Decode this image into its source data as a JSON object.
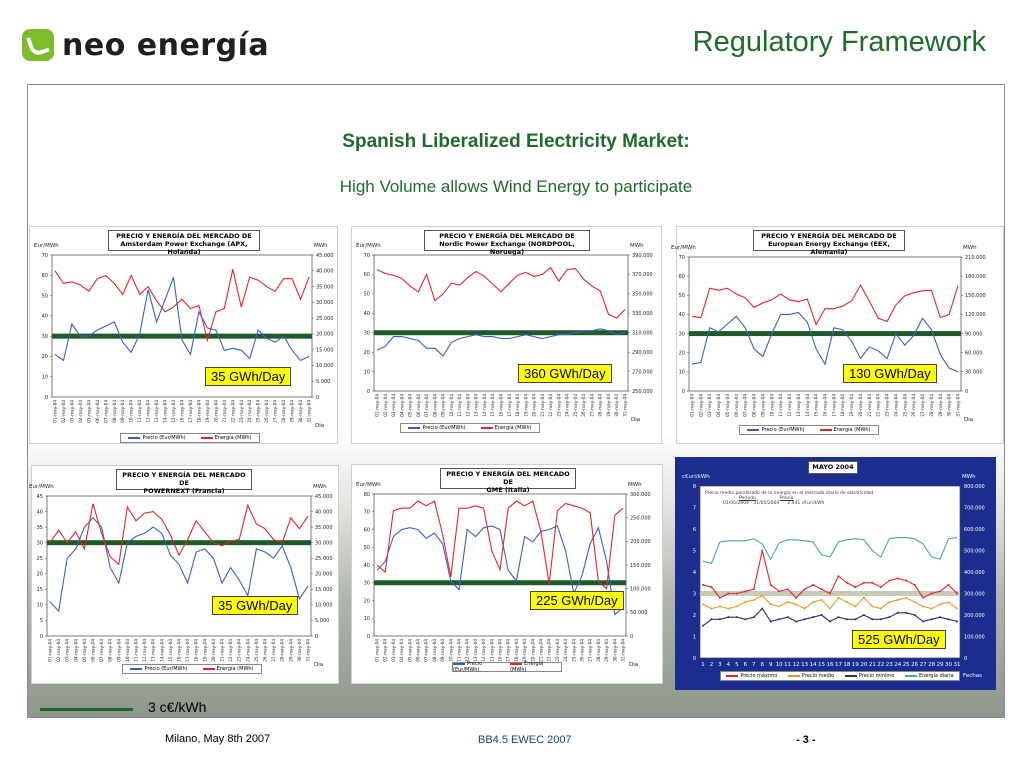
{
  "logo": {
    "text": "neo energía"
  },
  "title": "Regulatory Framework",
  "headline": "Spanish Liberalized Electricity Market:",
  "subheadline": "High Volume allows Wind Energy to participate",
  "colors": {
    "title_green": "#1f6b2b",
    "threshold": "#1f5a2a",
    "price": "#3c5fc4",
    "energy": "#e0262b",
    "callout": "#ffff00"
  },
  "key": {
    "label": "3 c€/kWh"
  },
  "footer": {
    "left": "Milano, May 8th 2007",
    "center": "BB4.5 EWEC 2007",
    "right": "- 3 -"
  },
  "chart_data": [
    {
      "type": "line",
      "title_line1": "PRECIO Y ENERGÍA DEL MERCADO DE",
      "title_line2": "Amsterdam Power Exchange (APX, Holanda)",
      "ylabel_left": "Eur/MWh",
      "ylabel_right": "MWh",
      "xlabel": "Dia",
      "ylim_left": [
        0,
        70
      ],
      "yticks_left": [
        "0",
        "10",
        "20",
        "30",
        "40",
        "50",
        "60",
        "70"
      ],
      "ylim_right": [
        0,
        45000
      ],
      "yticks_right": [
        "0",
        "5.000",
        "10.000",
        "15.000",
        "20.000",
        "25.000",
        "30.000",
        "35.000",
        "40.000",
        "45.000"
      ],
      "x_start": "01-may-04",
      "x_end": "31-may-04",
      "threshold": 30,
      "callout": "35 GWh/Day",
      "series": [
        {
          "name": "Precio (Eur/MWh)",
          "axis": "left",
          "values": [
            21,
            18,
            36,
            30,
            30,
            33,
            35,
            37,
            27,
            22,
            31,
            53,
            37,
            48,
            59,
            28,
            21,
            42,
            34,
            33,
            23,
            24,
            23,
            19,
            33,
            29,
            27,
            30,
            23,
            18,
            20
          ]
        },
        {
          "name": "Energía (MWh)",
          "axis": "right",
          "values": [
            40000,
            36000,
            36500,
            35500,
            33500,
            37500,
            38500,
            36000,
            32500,
            38500,
            32500,
            35000,
            30500,
            27000,
            28500,
            31000,
            28000,
            29000,
            18000,
            27000,
            28000,
            40500,
            28500,
            38000,
            37000,
            35000,
            33500,
            37500,
            37500,
            31000,
            38000
          ]
        }
      ]
    },
    {
      "type": "line",
      "title_line1": "PRECIO Y ENERGÍA DEL MERCADO DE",
      "title_line2": "Nordic Power Exchange (NORDPOOL, Noruega)",
      "ylabel_left": "Eur/MWh",
      "ylabel_right": "MWh",
      "xlabel": "Dia",
      "ylim_left": [
        0,
        70
      ],
      "yticks_left": [
        "0",
        "10",
        "20",
        "30",
        "40",
        "50",
        "60",
        "70"
      ],
      "ylim_right": [
        250000,
        390000
      ],
      "yticks_right": [
        "250.000",
        "270.000",
        "290.000",
        "310.000",
        "330.000",
        "350.000",
        "370.000",
        "390.000"
      ],
      "x_start": "01-may-04",
      "x_end": "31-may-04",
      "threshold": 30,
      "callout": "360 GWh/Day",
      "series": [
        {
          "name": "Precio (Eur/MWh)",
          "axis": "left",
          "values": [
            21,
            23,
            28,
            28,
            27,
            26,
            22,
            22,
            18,
            25,
            27,
            28,
            29,
            28,
            28,
            27,
            27,
            28,
            29,
            28,
            27,
            28,
            29,
            29,
            30,
            31,
            31,
            32,
            31,
            29,
            30
          ]
        },
        {
          "name": "Energía (MWh)",
          "axis": "right",
          "values": [
            375000,
            371000,
            369000,
            366000,
            358000,
            352000,
            370000,
            343000,
            350000,
            361000,
            359000,
            367000,
            373000,
            368000,
            360000,
            352000,
            361000,
            369000,
            372000,
            368000,
            370000,
            377000,
            363000,
            375000,
            376000,
            365000,
            358000,
            353000,
            329000,
            325000,
            334000
          ]
        }
      ]
    },
    {
      "type": "line",
      "title_line1": "PRECIO Y ENERGÍA DEL MERCADO DE",
      "title_line2": "European Energy Exchange (EEX, Alemania)",
      "ylabel_left": "Eur/MWh",
      "ylabel_right": "MWh",
      "xlabel": "Dia",
      "ylim_left": [
        0,
        70
      ],
      "yticks_left": [
        "0",
        "10",
        "20",
        "30",
        "40",
        "50",
        "60",
        "70"
      ],
      "ylim_right": [
        0,
        210000
      ],
      "yticks_right": [
        "0",
        "30.000",
        "60.000",
        "90.000",
        "120.000",
        "150.000",
        "180.000",
        "210.000"
      ],
      "x_start": "01-may-04",
      "x_end": "31-may-04",
      "threshold": 30,
      "callout": "130 GWh/Day",
      "series": [
        {
          "name": "Precio (Eur/MWh)",
          "axis": "left",
          "values": [
            14,
            15,
            33,
            31,
            35,
            39,
            33,
            22,
            18,
            30,
            40,
            40,
            41,
            36,
            22,
            14,
            33,
            32,
            26,
            17,
            23,
            21,
            17,
            30,
            24,
            29,
            38,
            32,
            19,
            12,
            10
          ]
        },
        {
          "name": "Energía (MWh)",
          "axis": "right",
          "values": [
            117000,
            115000,
            161000,
            158000,
            161000,
            152000,
            146000,
            131000,
            138000,
            143000,
            152000,
            143000,
            140000,
            144000,
            104000,
            129000,
            129000,
            133000,
            141000,
            166000,
            141000,
            114000,
            109000,
            135000,
            149000,
            154000,
            157000,
            158000,
            115000,
            120000,
            165000
          ]
        }
      ]
    },
    {
      "type": "line",
      "title_line1": "PRECIO Y ENERGÍA DEL MERCADO DE",
      "title_line2": "POWERNEXT (Francia)",
      "ylabel_left": "Eur/MWh",
      "ylabel_right": "MWh",
      "xlabel": "Dia",
      "ylim_left": [
        0,
        45
      ],
      "yticks_left": [
        "0",
        "5",
        "10",
        "15",
        "20",
        "25",
        "30",
        "35",
        "40",
        "45"
      ],
      "ylim_right": [
        0,
        45000
      ],
      "yticks_right": [
        "0",
        "5.000",
        "10.000",
        "15.000",
        "20.000",
        "25.000",
        "30.000",
        "35.000",
        "40.000",
        "45.000"
      ],
      "x_start": "01-may-04",
      "x_end": "31-may-04",
      "threshold": 30,
      "callout": "35 GWh/Day",
      "series": [
        {
          "name": "Precio (Eur/MWh)",
          "axis": "left",
          "values": [
            11,
            8,
            25,
            28,
            35,
            38,
            35,
            22,
            17,
            30,
            32,
            33,
            35,
            33,
            26,
            23,
            17,
            27,
            28,
            25,
            17,
            22,
            18,
            13,
            28,
            27,
            25,
            29,
            22,
            12,
            16
          ]
        },
        {
          "name": "Energía (MWh)",
          "axis": "right",
          "values": [
            30000,
            34000,
            30000,
            33500,
            28000,
            42500,
            33000,
            25500,
            23000,
            41500,
            37000,
            39500,
            40000,
            37500,
            32500,
            26000,
            31000,
            37000,
            33500,
            30000,
            29000,
            30500,
            31000,
            42000,
            36000,
            34500,
            31000,
            30000,
            38000,
            34500,
            38500
          ]
        }
      ]
    },
    {
      "type": "line",
      "title_line1": "PRECIO Y ENERGÍA DEL MERCADO DE",
      "title_line2": "GME (Italia)",
      "ylabel_left": "Eur/MWh",
      "ylabel_right": "MWh",
      "xlabel": "Dia",
      "ylim_left": [
        0,
        80
      ],
      "yticks_left": [
        "0",
        "10",
        "20",
        "30",
        "40",
        "50",
        "60",
        "70",
        "80"
      ],
      "ylim_right": [
        0,
        300000
      ],
      "yticks_right": [
        "0",
        "50.000",
        "100.000",
        "150.000",
        "200.000",
        "250.000",
        "300.000"
      ],
      "x_start": "01-may-04",
      "x_end": "31-may-04",
      "threshold": 30,
      "callout": "225 GWh/Day",
      "series": [
        {
          "name": "Precio (Eur/MWh)",
          "axis": "left",
          "values": [
            37,
            42,
            56,
            60,
            61,
            60,
            55,
            58,
            52,
            31,
            26,
            60,
            56,
            61,
            62,
            60,
            37,
            31,
            56,
            53,
            59,
            60,
            62,
            48,
            24,
            34,
            52,
            61,
            42,
            12,
            16
          ]
        },
        {
          "name": "Energía (MWh)",
          "axis": "right",
          "values": [
            150000,
            135000,
            265000,
            270000,
            270000,
            285000,
            275000,
            285000,
            215000,
            125000,
            270000,
            270000,
            275000,
            270000,
            180000,
            140000,
            270000,
            285000,
            275000,
            285000,
            220000,
            110000,
            265000,
            280000,
            275000,
            270000,
            260000,
            115000,
            100000,
            255000,
            270000
          ]
        }
      ]
    },
    {
      "type": "line",
      "title": "MAYO 2004",
      "ylabel_left": "c€uri/kWh",
      "ylabel_right": "MWh",
      "xlabel": "Fechas",
      "ylim_left": [
        0,
        8
      ],
      "yticks_left": [
        "0",
        "1",
        "2",
        "3",
        "4",
        "5",
        "6",
        "7",
        "8"
      ],
      "ylim_right": [
        0,
        800000
      ],
      "yticks_right": [
        "0",
        "100.000",
        "200.000",
        "300.000",
        "400.000",
        "500.000",
        "600.000",
        "700.000",
        "800.000"
      ],
      "x": [
        "1",
        "2",
        "3",
        "4",
        "5",
        "6",
        "7",
        "8",
        "9",
        "10",
        "11",
        "12",
        "13",
        "14",
        "15",
        "16",
        "17",
        "18",
        "19",
        "20",
        "21",
        "22",
        "23",
        "24",
        "25",
        "26",
        "27",
        "28",
        "29",
        "30",
        "31"
      ],
      "threshold": 3,
      "callout": "525 GWh/Day",
      "info_title": "Precio medio ponderado de la energía en el mercado diario de electricidad",
      "info_col1": "Período",
      "info_col2": "Precio",
      "info_period": "01/05/2004  -  31/05/2004",
      "info_value": "2,441 c€uri/kWh",
      "series": [
        {
          "name": "Precio máximo",
          "axis": "left",
          "values": [
            3.4,
            3.3,
            2.8,
            3,
            3,
            3.1,
            3.2,
            5,
            3.4,
            3.1,
            3.2,
            2.8,
            3.2,
            3.4,
            3.2,
            3,
            3.8,
            3.5,
            3.3,
            3.5,
            3.5,
            3.3,
            3.6,
            3.7,
            3.6,
            3.4,
            2.8,
            3,
            3.1,
            3.4,
            3
          ]
        },
        {
          "name": "Precio medio",
          "axis": "left",
          "values": [
            2.5,
            2.3,
            2.4,
            2.3,
            2.4,
            2.6,
            2.7,
            2.9,
            2.5,
            2.4,
            2.6,
            2.5,
            2.3,
            2.6,
            2.7,
            2.3,
            2.8,
            2.6,
            2.4,
            2.8,
            2.4,
            2.3,
            2.6,
            2.7,
            2.8,
            2.6,
            2.4,
            2.3,
            2.5,
            2.6,
            2.3
          ]
        },
        {
          "name": "Precio mínimo",
          "axis": "left",
          "values": [
            1.5,
            1.8,
            1.8,
            1.9,
            1.9,
            1.8,
            1.9,
            2.3,
            1.7,
            1.8,
            1.9,
            1.7,
            1.8,
            1.9,
            2,
            1.7,
            1.9,
            1.8,
            1.8,
            2,
            1.8,
            1.8,
            1.9,
            2.1,
            2.1,
            2,
            1.7,
            1.8,
            1.9,
            1.8,
            1.7
          ]
        },
        {
          "name": "Energía diaria",
          "axis": "right",
          "values": [
            450000,
            440000,
            540000,
            545000,
            545000,
            545000,
            555000,
            530000,
            460000,
            535000,
            550000,
            550000,
            545000,
            540000,
            480000,
            470000,
            540000,
            550000,
            555000,
            550000,
            500000,
            470000,
            555000,
            560000,
            560000,
            555000,
            530000,
            470000,
            460000,
            555000,
            560000
          ]
        }
      ]
    }
  ]
}
